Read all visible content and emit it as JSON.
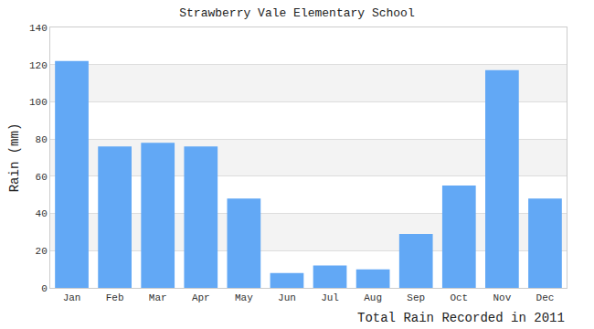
{
  "chart_data": {
    "type": "bar",
    "title": "Strawberry Vale Elementary School",
    "ylabel": "Rain (mm)",
    "xlabel": "Total Rain Recorded in 2011",
    "categories": [
      "Jan",
      "Feb",
      "Mar",
      "Apr",
      "May",
      "Jun",
      "Jul",
      "Aug",
      "Sep",
      "Oct",
      "Nov",
      "Dec"
    ],
    "values": [
      122,
      76,
      78,
      76,
      48,
      8,
      12,
      10,
      29,
      55,
      117,
      48
    ],
    "color": "#62a8f5",
    "ylim": [
      0,
      140
    ],
    "yticks": [
      0,
      20,
      40,
      60,
      80,
      100,
      120,
      140
    ],
    "grid": true
  }
}
